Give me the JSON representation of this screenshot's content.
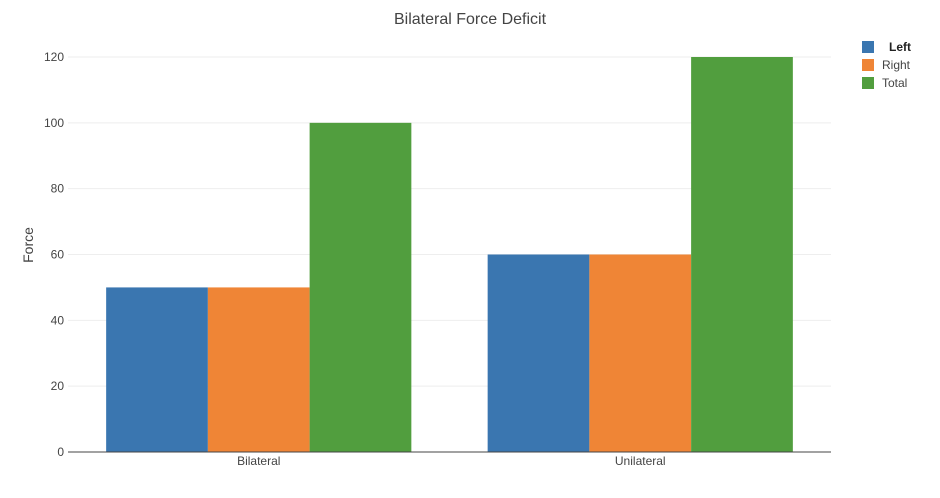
{
  "chart_data": {
    "type": "bar",
    "title": "Bilateral Force Deficit",
    "xlabel": "",
    "ylabel": "Force",
    "categories": [
      "Bilateral",
      "Unilateral"
    ],
    "series": [
      {
        "name": "Left",
        "values": [
          50,
          60
        ],
        "color": "#3a76b0"
      },
      {
        "name": "Right",
        "values": [
          50,
          60
        ],
        "color": "#ef8536"
      },
      {
        "name": "Total",
        "values": [
          100,
          120
        ],
        "color": "#519e3e"
      }
    ],
    "ylim": [
      0,
      125
    ],
    "yticks": [
      0,
      20,
      40,
      60,
      80,
      100,
      120
    ],
    "grid": true,
    "legend_position": "top-right"
  }
}
